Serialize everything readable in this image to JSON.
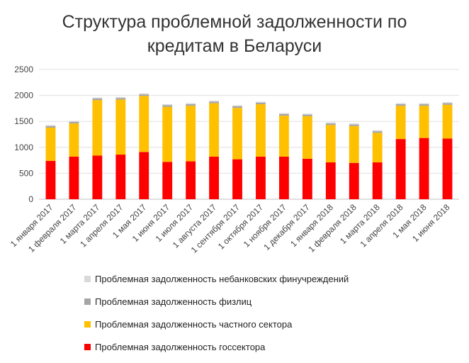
{
  "chart_data": {
    "type": "bar",
    "stacked": true,
    "title": "Структура проблемной задолженности по кредитам в Беларуси",
    "xlabel": "",
    "ylabel": "",
    "ylim": [
      0,
      2500
    ],
    "yticks": [
      0,
      500,
      1000,
      1500,
      2000,
      2500
    ],
    "grid": true,
    "legend_position": "bottom",
    "categories": [
      "1 января 2017",
      "1 февраля 2017",
      "1 марта 2017",
      "1 апреля 2017",
      "1 мая 2017",
      "1 июня 2017",
      "1 июля 2017",
      "1 августа 2017",
      "1 сентября 2017",
      "1 октября 2017",
      "1 ноября 2017",
      "1 декабря 2017",
      "1 января 2018",
      "1 февраля 2018",
      "1 марта 2018",
      "1 апреля 2018",
      "1 мая 2018",
      "1 июня 2018"
    ],
    "series": [
      {
        "name": "Проблемная задолженность госсектора",
        "color": "#ff0000",
        "values": [
          740,
          820,
          840,
          860,
          910,
          720,
          730,
          820,
          770,
          820,
          820,
          780,
          710,
          700,
          710,
          1160,
          1180,
          1170
        ]
      },
      {
        "name": "Проблемная задолженность частного сектора",
        "color": "#ffc000",
        "values": [
          640,
          640,
          1070,
          1060,
          1080,
          1060,
          1070,
          1030,
          990,
          1010,
          790,
          820,
          720,
          710,
          570,
          640,
          620,
          650
        ]
      },
      {
        "name": "Проблемная задолженность физлиц",
        "color": "#a5a5a5",
        "values": [
          30,
          30,
          30,
          30,
          30,
          30,
          30,
          30,
          30,
          30,
          30,
          30,
          30,
          30,
          30,
          30,
          30,
          30
        ]
      },
      {
        "name": "Проблемная задолженность небанковских финучреждений",
        "color": "#d9d9d9",
        "values": [
          20,
          20,
          20,
          20,
          20,
          20,
          20,
          20,
          20,
          20,
          20,
          20,
          20,
          20,
          20,
          20,
          20,
          20
        ]
      }
    ]
  }
}
